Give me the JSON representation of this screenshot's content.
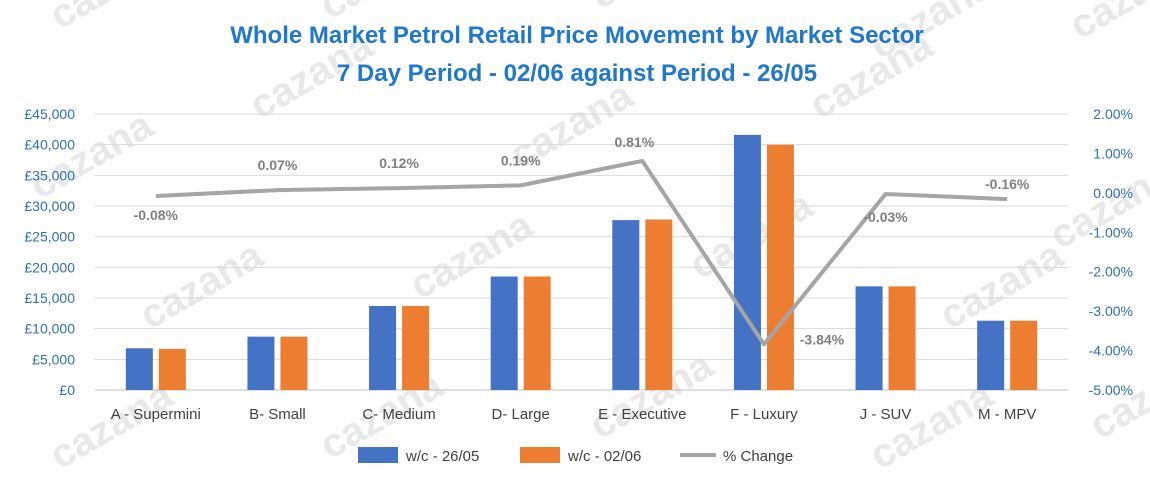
{
  "chart_data": {
    "type": "bar",
    "title": "Whole Market Petrol Retail Price Movement by Market Sector",
    "subtitle": "7 Day Period - 02/06 against Period - 26/05",
    "watermark": "cazana",
    "categories": [
      "A - Supermini",
      "B- Small",
      "C- Medium",
      "D- Large",
      "E - Executive",
      "F - Luxury",
      "J - SUV",
      "M - MPV"
    ],
    "series": [
      {
        "name": "w/c - 26/05",
        "kind": "bar",
        "axis": "left",
        "color": "#4472c4",
        "values": [
          6800,
          8700,
          13700,
          18500,
          27700,
          41600,
          16900,
          11300
        ]
      },
      {
        "name": "w/c - 02/06",
        "kind": "bar",
        "axis": "left",
        "color": "#ed7d31",
        "values": [
          6700,
          8700,
          13700,
          18500,
          27800,
          40000,
          16900,
          11300
        ]
      },
      {
        "name": "% Change",
        "kind": "line",
        "axis": "right",
        "color": "#a5a5a5",
        "values": [
          -0.08,
          0.07,
          0.12,
          0.19,
          0.81,
          -3.84,
          -0.03,
          -0.16
        ],
        "labels": [
          "-0.08%",
          "0.07%",
          "0.12%",
          "0.19%",
          "0.81%",
          "-3.84%",
          "-0.03%",
          "-0.16%"
        ]
      }
    ],
    "y_left": {
      "min": 0,
      "max": 45000,
      "step": 5000,
      "ticks": [
        "£0",
        "£5,000",
        "£10,000",
        "£15,000",
        "£20,000",
        "£25,000",
        "£30,000",
        "£35,000",
        "£40,000",
        "£45,000"
      ]
    },
    "y_right": {
      "min": -5,
      "max": 2,
      "step": 1,
      "ticks": [
        "-5.00%",
        "-4.00%",
        "-3.00%",
        "-2.00%",
        "-1.00%",
        "0.00%",
        "1.00%",
        "2.00%"
      ]
    },
    "grid": true,
    "legend": "bottom",
    "colors": {
      "title": "#1f78c8",
      "axis_text": "#2e6fb5",
      "grid": "#d9d9d9"
    }
  }
}
